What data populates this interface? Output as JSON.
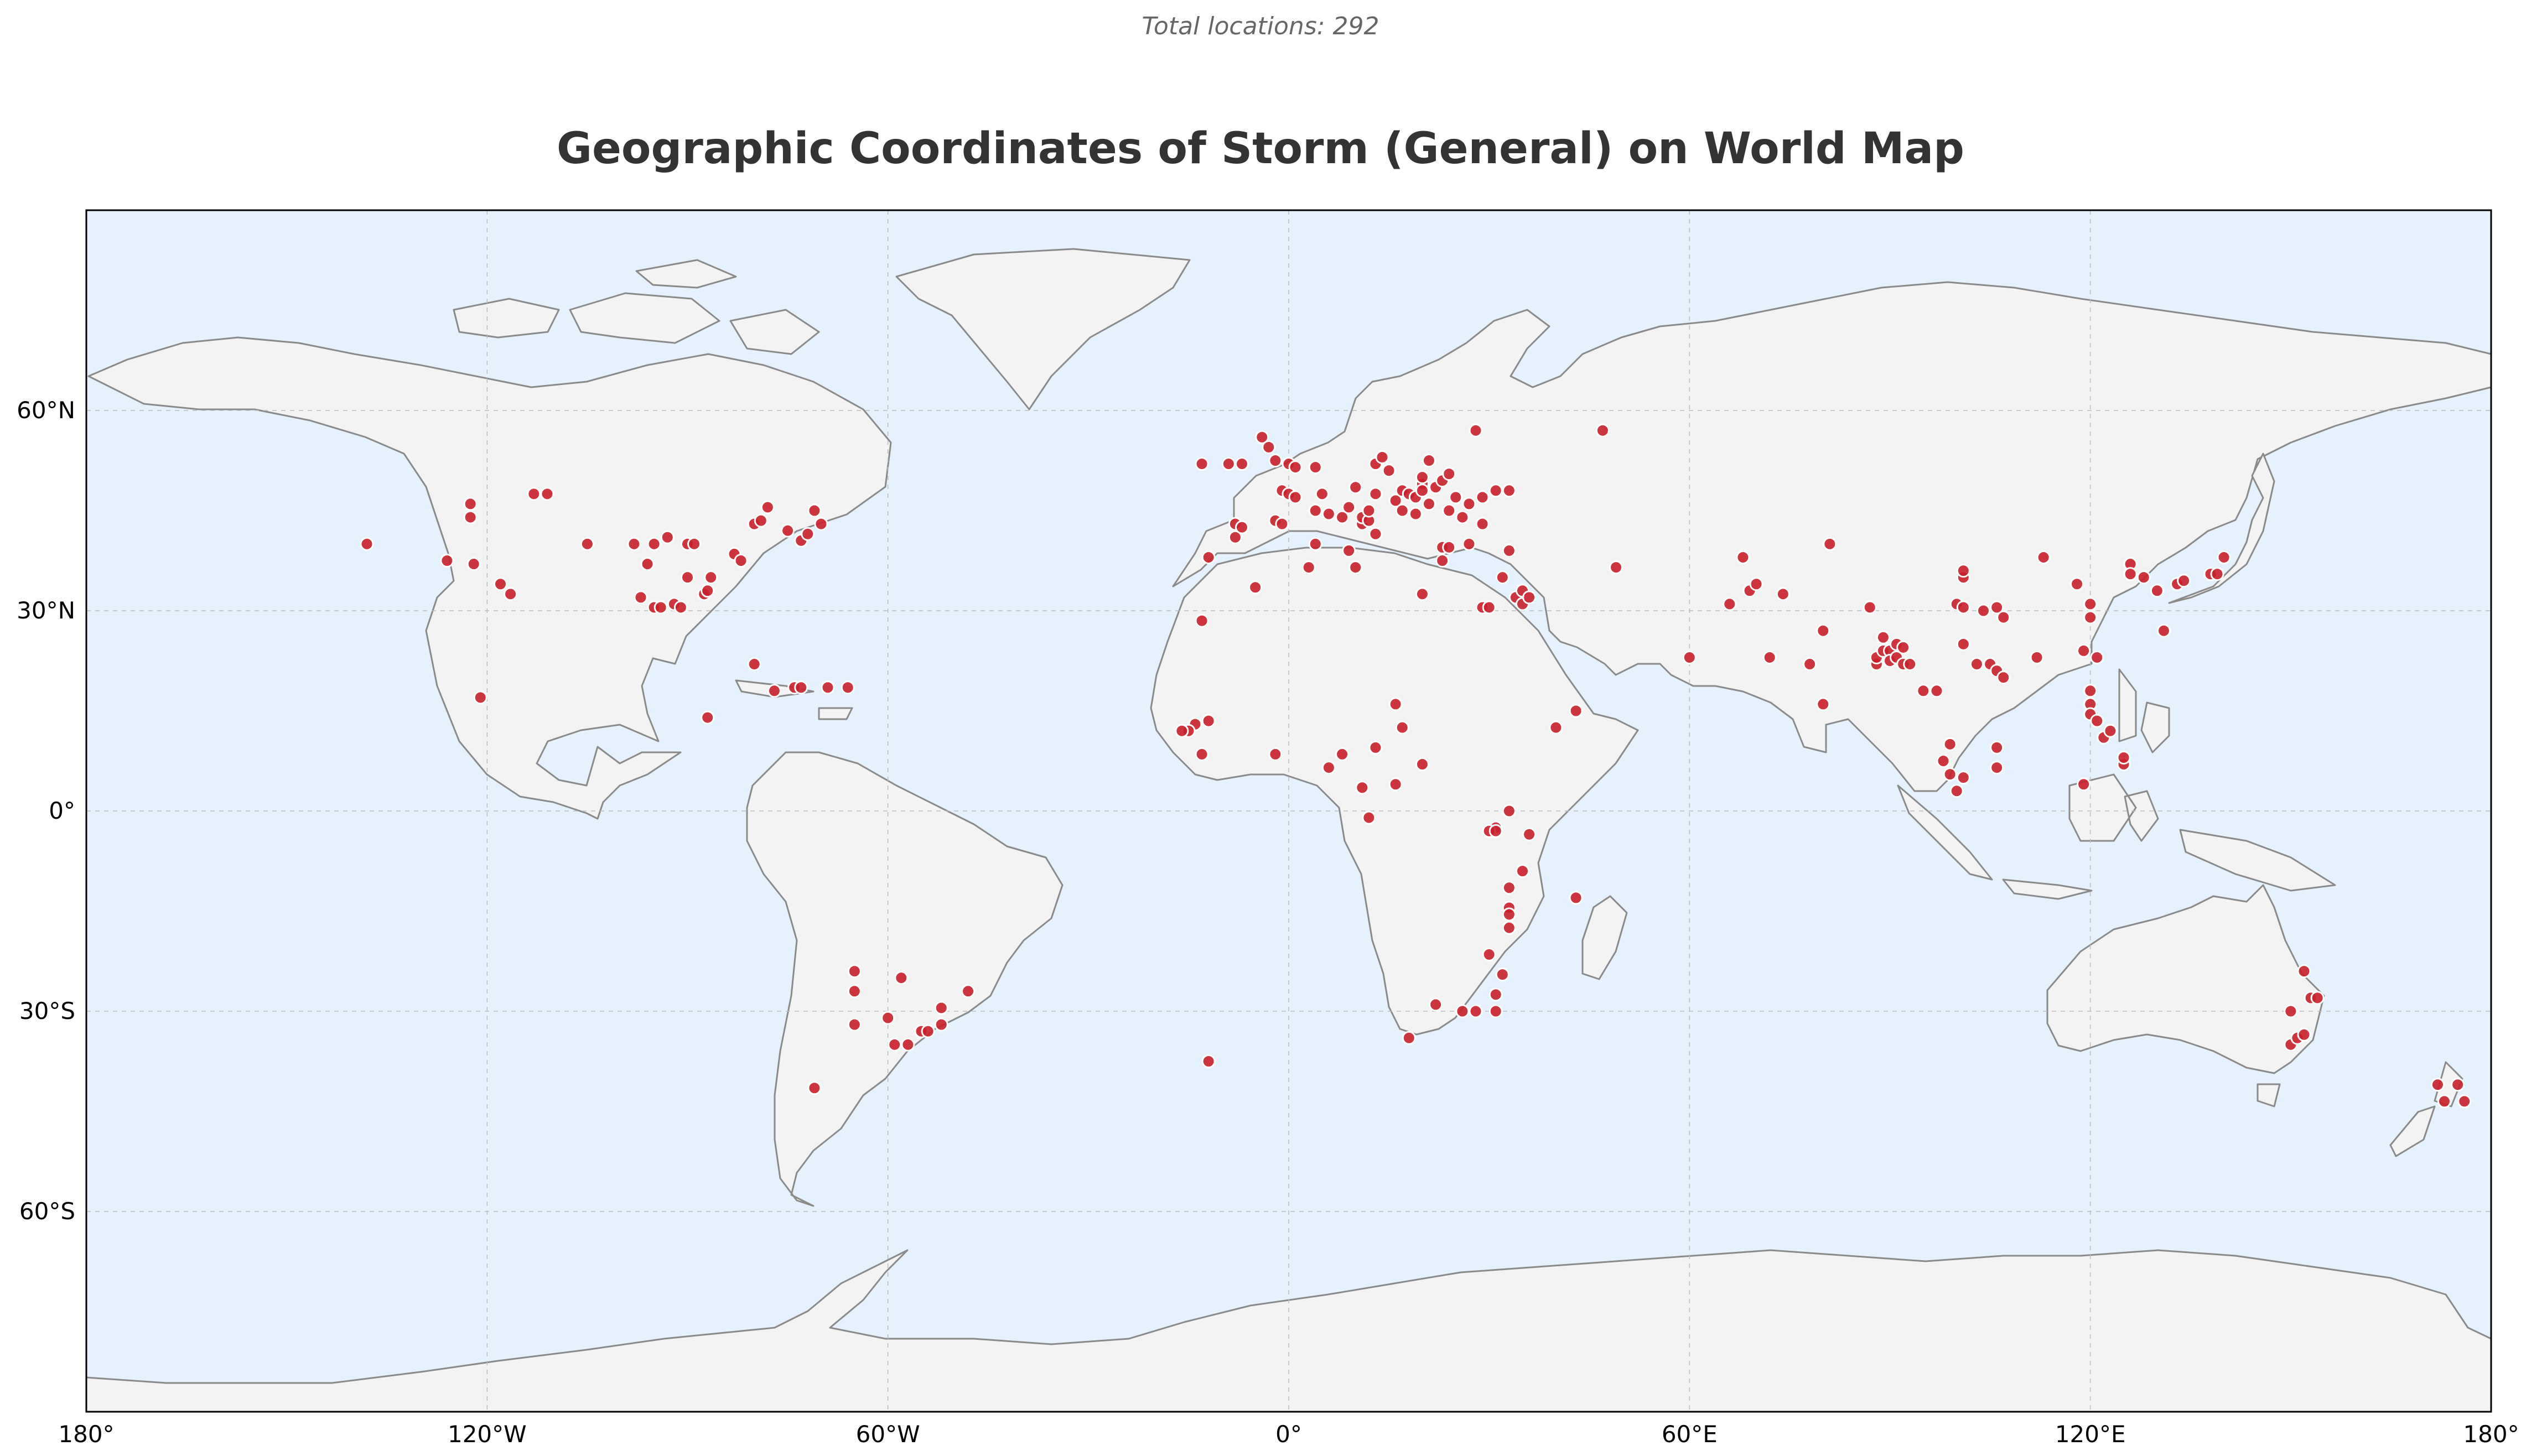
{
  "subtitle": "Total locations: 292",
  "title": "Geographic Coordinates of Storm (General) on World Map",
  "map": {
    "projection": "equirectangular",
    "lon_range": [
      -180,
      180
    ],
    "lat_range": [
      -90,
      90
    ],
    "grid": true,
    "ocean_color": "#e5f1fd",
    "land_color": "#f3f3f3",
    "coastline_color": "#8a8a8a",
    "marker_color": "#c8202a"
  },
  "x_ticks": [
    {
      "value": -180,
      "label": "180°"
    },
    {
      "value": -120,
      "label": "120°W"
    },
    {
      "value": -60,
      "label": "60°W"
    },
    {
      "value": 0,
      "label": "0°"
    },
    {
      "value": 60,
      "label": "60°E"
    },
    {
      "value": 120,
      "label": "120°E"
    },
    {
      "value": 180,
      "label": "180°"
    }
  ],
  "y_ticks": [
    {
      "value": 60,
      "label": "60°N"
    },
    {
      "value": 30,
      "label": "30°N"
    },
    {
      "value": 0,
      "label": "0°"
    },
    {
      "value": -30,
      "label": "30°S"
    },
    {
      "value": -60,
      "label": "60°S"
    }
  ],
  "chart_data": {
    "type": "scatter",
    "x_label": "longitude",
    "y_label": "latitude",
    "total": 292,
    "points": [
      [
        -138,
        40
      ],
      [
        -126,
        37.5
      ],
      [
        -122.5,
        46
      ],
      [
        -122.5,
        44
      ],
      [
        -122,
        37
      ],
      [
        -118,
        34
      ],
      [
        -116.5,
        32.5
      ],
      [
        -113,
        47.5
      ],
      [
        -111,
        47.5
      ],
      [
        -121,
        17
      ],
      [
        -105,
        40
      ],
      [
        -98,
        40
      ],
      [
        -96,
        37
      ],
      [
        -95,
        40
      ],
      [
        -93,
        41
      ],
      [
        -90,
        40
      ],
      [
        -89,
        40
      ],
      [
        -97,
        32
      ],
      [
        -95,
        30.5
      ],
      [
        -94,
        30.5
      ],
      [
        -92,
        31
      ],
      [
        -91,
        30.5
      ],
      [
        -90,
        35
      ],
      [
        -87.5,
        32.5
      ],
      [
        -87,
        33
      ],
      [
        -86.5,
        35
      ],
      [
        -87,
        14
      ],
      [
        -83,
        38.5
      ],
      [
        -82,
        37.5
      ],
      [
        -80,
        43
      ],
      [
        -79,
        43.5
      ],
      [
        -78,
        45.5
      ],
      [
        -75,
        42
      ],
      [
        -73,
        40.5
      ],
      [
        -72,
        41.5
      ],
      [
        -71,
        45
      ],
      [
        -70,
        43
      ],
      [
        -80,
        22
      ],
      [
        -77,
        18
      ],
      [
        -74,
        18.5
      ],
      [
        -73,
        18.5
      ],
      [
        -69,
        18.5
      ],
      [
        -66,
        18.5
      ],
      [
        -65,
        -24
      ],
      [
        -65,
        -27
      ],
      [
        -65,
        -32
      ],
      [
        -60,
        -31
      ],
      [
        -59,
        -35
      ],
      [
        -58,
        -25
      ],
      [
        -57,
        -35
      ],
      [
        -55,
        -33
      ],
      [
        -54,
        -33
      ],
      [
        -52,
        -32
      ],
      [
        -52,
        -29.5
      ],
      [
        -48,
        -27
      ],
      [
        -71,
        -41.5
      ],
      [
        -13,
        52
      ],
      [
        -9,
        52
      ],
      [
        -7,
        52
      ],
      [
        -4,
        56
      ],
      [
        -3,
        54.5
      ],
      [
        -2,
        52.5
      ],
      [
        0,
        52
      ],
      [
        1,
        51.5
      ],
      [
        -1,
        48
      ],
      [
        0,
        47.5
      ],
      [
        1,
        47
      ],
      [
        -2,
        43.5
      ],
      [
        -1,
        43
      ],
      [
        -8,
        43
      ],
      [
        -8,
        41
      ],
      [
        -7,
        42.5
      ],
      [
        -5,
        33.5
      ],
      [
        -13,
        28.5
      ],
      [
        -12,
        38
      ],
      [
        -14,
        13
      ],
      [
        -15,
        12
      ],
      [
        -16,
        12
      ],
      [
        -13,
        8.5
      ],
      [
        -12,
        13.5
      ],
      [
        -2,
        8.5
      ],
      [
        4,
        51.5
      ],
      [
        5,
        47.5
      ],
      [
        4,
        45
      ],
      [
        6,
        44.5
      ],
      [
        8,
        44
      ],
      [
        9,
        45.5
      ],
      [
        10,
        48.5
      ],
      [
        11,
        43
      ],
      [
        11,
        44
      ],
      [
        12,
        43.5
      ],
      [
        12,
        45
      ],
      [
        13,
        41.5
      ],
      [
        13,
        47.5
      ],
      [
        13,
        52
      ],
      [
        14,
        53
      ],
      [
        15,
        51
      ],
      [
        16,
        46.5
      ],
      [
        17,
        45
      ],
      [
        17,
        48
      ],
      [
        18,
        47.5
      ],
      [
        19,
        47
      ],
      [
        19,
        44.5
      ],
      [
        20,
        49
      ],
      [
        20,
        48
      ],
      [
        20,
        50
      ],
      [
        21,
        52.5
      ],
      [
        21,
        46
      ],
      [
        22,
        48.5
      ],
      [
        23,
        49.5
      ],
      [
        24,
        45
      ],
      [
        24,
        50.5
      ],
      [
        25,
        47
      ],
      [
        26,
        44
      ],
      [
        27,
        46
      ],
      [
        28,
        57
      ],
      [
        29,
        47
      ],
      [
        29,
        43
      ],
      [
        31,
        48
      ],
      [
        33,
        48
      ],
      [
        32,
        35
      ],
      [
        33,
        39
      ],
      [
        34,
        32
      ],
      [
        35,
        31
      ],
      [
        35,
        33
      ],
      [
        36,
        32
      ],
      [
        29,
        30.5
      ],
      [
        30,
        30.5
      ],
      [
        23,
        39.5
      ],
      [
        24,
        39.5
      ],
      [
        23,
        37.5
      ],
      [
        27,
        40
      ],
      [
        20,
        32.5
      ],
      [
        10,
        36.5
      ],
      [
        3,
        36.5
      ],
      [
        4,
        40
      ],
      [
        9,
        39
      ],
      [
        16,
        16
      ],
      [
        17,
        12.5
      ],
      [
        13,
        9.5
      ],
      [
        8,
        8.5
      ],
      [
        6,
        6.5
      ],
      [
        11,
        3.5
      ],
      [
        16,
        4
      ],
      [
        12,
        -1
      ],
      [
        20,
        7
      ],
      [
        33,
        0
      ],
      [
        31,
        -2.5
      ],
      [
        30,
        -3
      ],
      [
        31,
        -3
      ],
      [
        36,
        -3.5
      ],
      [
        35,
        -9
      ],
      [
        33,
        -11.5
      ],
      [
        33,
        -14.5
      ],
      [
        33,
        -15.5
      ],
      [
        33,
        -17.5
      ],
      [
        30,
        -21.5
      ],
      [
        32,
        -24.5
      ],
      [
        31,
        -27.5
      ],
      [
        31,
        -30
      ],
      [
        28,
        -30
      ],
      [
        26,
        -30
      ],
      [
        22,
        -29
      ],
      [
        18,
        -34
      ],
      [
        40,
        12.5
      ],
      [
        43,
        15
      ],
      [
        43,
        -13
      ],
      [
        -12,
        -37.5
      ],
      [
        47,
        57
      ],
      [
        49,
        36.5
      ],
      [
        60,
        23
      ],
      [
        68,
        38
      ],
      [
        66,
        31
      ],
      [
        69,
        33
      ],
      [
        70,
        34
      ],
      [
        72,
        23
      ],
      [
        74,
        32.5
      ],
      [
        78,
        22
      ],
      [
        80,
        27
      ],
      [
        80,
        16
      ],
      [
        81,
        40
      ],
      [
        87,
        30.5
      ],
      [
        88,
        22
      ],
      [
        88,
        23
      ],
      [
        89,
        24
      ],
      [
        89,
        26
      ],
      [
        90,
        24
      ],
      [
        90,
        22.5
      ],
      [
        91,
        23
      ],
      [
        91,
        25
      ],
      [
        92,
        22
      ],
      [
        93,
        22
      ],
      [
        92,
        24.5
      ],
      [
        95,
        18
      ],
      [
        97,
        18
      ],
      [
        98,
        7.5
      ],
      [
        99,
        5.5
      ],
      [
        101,
        5
      ],
      [
        100,
        3
      ],
      [
        99,
        10
      ],
      [
        100,
        31
      ],
      [
        101,
        25
      ],
      [
        101,
        30.5
      ],
      [
        101,
        35
      ],
      [
        101,
        36
      ],
      [
        103,
        22
      ],
      [
        104,
        30
      ],
      [
        105,
        22
      ],
      [
        106,
        30.5
      ],
      [
        106,
        21
      ],
      [
        107,
        20
      ],
      [
        106,
        6.5
      ],
      [
        106,
        9.5
      ],
      [
        107,
        29
      ],
      [
        112,
        23
      ],
      [
        113,
        38
      ],
      [
        118,
        34
      ],
      [
        119,
        24
      ],
      [
        120,
        29
      ],
      [
        120,
        31
      ],
      [
        121,
        23
      ],
      [
        120,
        18
      ],
      [
        120,
        16
      ],
      [
        120,
        14.5
      ],
      [
        121,
        13.5
      ],
      [
        122,
        11
      ],
      [
        123,
        12
      ],
      [
        125,
        7
      ],
      [
        125,
        8
      ],
      [
        119,
        4
      ],
      [
        126,
        37
      ],
      [
        126,
        35.5
      ],
      [
        128,
        35
      ],
      [
        130,
        33
      ],
      [
        131,
        27
      ],
      [
        133,
        34
      ],
      [
        134,
        34.5
      ],
      [
        138,
        35.5
      ],
      [
        139,
        35.5
      ],
      [
        140,
        38
      ]
    ],
    "sample_points": [
      [
        150,
        -30
      ],
      [
        150,
        -35
      ],
      [
        151,
        -34
      ],
      [
        152,
        -33.5
      ],
      [
        152,
        -24
      ],
      [
        153,
        -28
      ],
      [
        154,
        -28
      ],
      [
        172,
        -41
      ],
      [
        173,
        -43.5
      ],
      [
        175,
        -41
      ],
      [
        176,
        -43.5
      ]
    ]
  }
}
